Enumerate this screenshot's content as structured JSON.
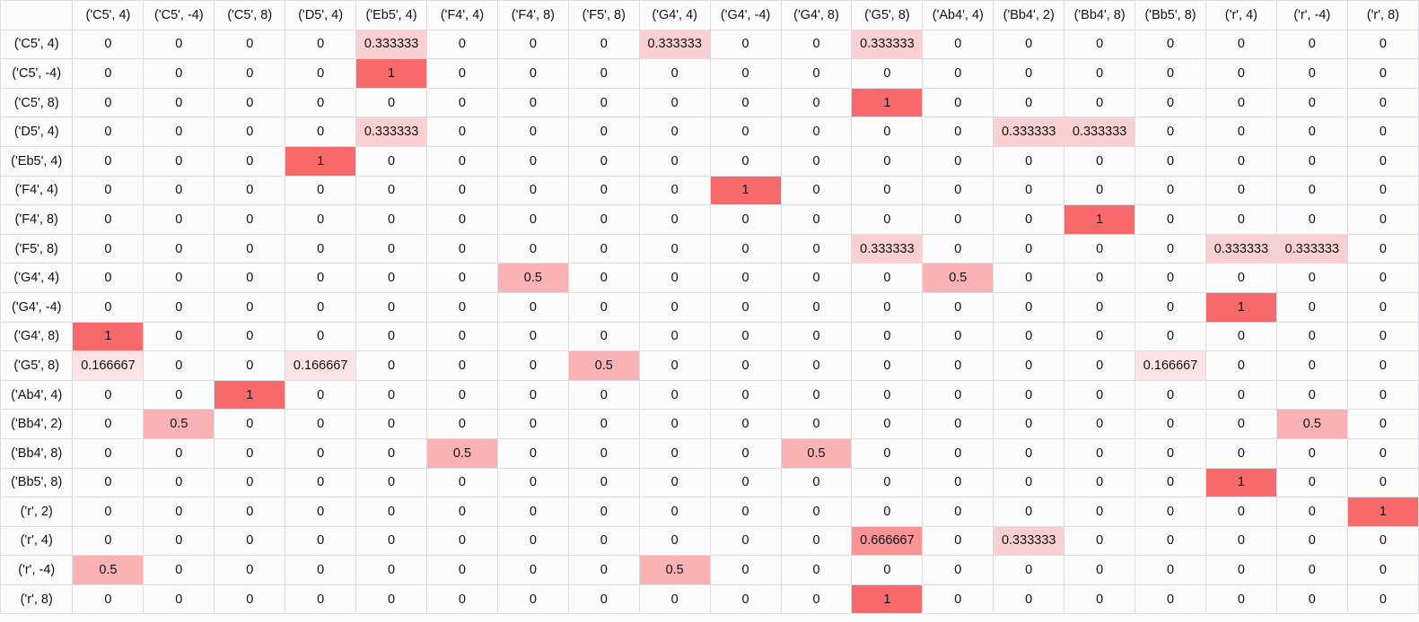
{
  "heat_colors": {
    "value_1": "#f7696b",
    "value_0_666667": "#f99496",
    "value_0_5": "#fab3b5",
    "value_0_333333": "#fbd0d2",
    "value_0_166667": "#fce4e6",
    "value_0": "#fcfcfd"
  },
  "table": {
    "corner": "",
    "columns": [
      "('C5', 4)",
      "('C5', -4)",
      "('C5', 8)",
      "('D5', 4)",
      "('Eb5', 4)",
      "('F4', 4)",
      "('F4', 8)",
      "('F5', 8)",
      "('G4', 4)",
      "('G4', -4)",
      "('G4', 8)",
      "('G5', 8)",
      "('Ab4', 4)",
      "('Bb4', 2)",
      "('Bb4', 8)",
      "('Bb5', 8)",
      "('r', 4)",
      "('r', -4)",
      "('r', 8)"
    ],
    "rows": [
      {
        "label": "('C5', 4)",
        "cells": [
          "0",
          "0",
          "0",
          "0",
          "0.333333",
          "0",
          "0",
          "0",
          "0.333333",
          "0",
          "0",
          "0.333333",
          "0",
          "0",
          "0",
          "0",
          "0",
          "0",
          "0"
        ]
      },
      {
        "label": "('C5', -4)",
        "cells": [
          "0",
          "0",
          "0",
          "0",
          "1",
          "0",
          "0",
          "0",
          "0",
          "0",
          "0",
          "0",
          "0",
          "0",
          "0",
          "0",
          "0",
          "0",
          "0"
        ]
      },
      {
        "label": "('C5', 8)",
        "cells": [
          "0",
          "0",
          "0",
          "0",
          "0",
          "0",
          "0",
          "0",
          "0",
          "0",
          "0",
          "1",
          "0",
          "0",
          "0",
          "0",
          "0",
          "0",
          "0"
        ]
      },
      {
        "label": "('D5', 4)",
        "cells": [
          "0",
          "0",
          "0",
          "0",
          "0.333333",
          "0",
          "0",
          "0",
          "0",
          "0",
          "0",
          "0",
          "0",
          "0.333333",
          "0.333333",
          "0",
          "0",
          "0",
          "0"
        ]
      },
      {
        "label": "('Eb5', 4)",
        "cells": [
          "0",
          "0",
          "0",
          "1",
          "0",
          "0",
          "0",
          "0",
          "0",
          "0",
          "0",
          "0",
          "0",
          "0",
          "0",
          "0",
          "0",
          "0",
          "0"
        ]
      },
      {
        "label": "('F4', 4)",
        "cells": [
          "0",
          "0",
          "0",
          "0",
          "0",
          "0",
          "0",
          "0",
          "0",
          "1",
          "0",
          "0",
          "0",
          "0",
          "0",
          "0",
          "0",
          "0",
          "0"
        ]
      },
      {
        "label": "('F4', 8)",
        "cells": [
          "0",
          "0",
          "0",
          "0",
          "0",
          "0",
          "0",
          "0",
          "0",
          "0",
          "0",
          "0",
          "0",
          "0",
          "1",
          "0",
          "0",
          "0",
          "0"
        ]
      },
      {
        "label": "('F5', 8)",
        "cells": [
          "0",
          "0",
          "0",
          "0",
          "0",
          "0",
          "0",
          "0",
          "0",
          "0",
          "0",
          "0.333333",
          "0",
          "0",
          "0",
          "0",
          "0.333333",
          "0.333333",
          "0"
        ]
      },
      {
        "label": "('G4', 4)",
        "cells": [
          "0",
          "0",
          "0",
          "0",
          "0",
          "0",
          "0.5",
          "0",
          "0",
          "0",
          "0",
          "0",
          "0.5",
          "0",
          "0",
          "0",
          "0",
          "0",
          "0"
        ]
      },
      {
        "label": "('G4', -4)",
        "cells": [
          "0",
          "0",
          "0",
          "0",
          "0",
          "0",
          "0",
          "0",
          "0",
          "0",
          "0",
          "0",
          "0",
          "0",
          "0",
          "0",
          "1",
          "0",
          "0"
        ]
      },
      {
        "label": "('G4', 8)",
        "cells": [
          "1",
          "0",
          "0",
          "0",
          "0",
          "0",
          "0",
          "0",
          "0",
          "0",
          "0",
          "0",
          "0",
          "0",
          "0",
          "0",
          "0",
          "0",
          "0"
        ]
      },
      {
        "label": "('G5', 8)",
        "cells": [
          "0.166667",
          "0",
          "0",
          "0.166667",
          "0",
          "0",
          "0",
          "0.5",
          "0",
          "0",
          "0",
          "0",
          "0",
          "0",
          "0",
          "0.166667",
          "0",
          "0",
          "0"
        ]
      },
      {
        "label": "('Ab4', 4)",
        "cells": [
          "0",
          "0",
          "1",
          "0",
          "0",
          "0",
          "0",
          "0",
          "0",
          "0",
          "0",
          "0",
          "0",
          "0",
          "0",
          "0",
          "0",
          "0",
          "0"
        ]
      },
      {
        "label": "('Bb4', 2)",
        "cells": [
          "0",
          "0.5",
          "0",
          "0",
          "0",
          "0",
          "0",
          "0",
          "0",
          "0",
          "0",
          "0",
          "0",
          "0",
          "0",
          "0",
          "0",
          "0.5",
          "0"
        ]
      },
      {
        "label": "('Bb4', 8)",
        "cells": [
          "0",
          "0",
          "0",
          "0",
          "0",
          "0.5",
          "0",
          "0",
          "0",
          "0",
          "0.5",
          "0",
          "0",
          "0",
          "0",
          "0",
          "0",
          "0",
          "0"
        ]
      },
      {
        "label": "('Bb5', 8)",
        "cells": [
          "0",
          "0",
          "0",
          "0",
          "0",
          "0",
          "0",
          "0",
          "0",
          "0",
          "0",
          "0",
          "0",
          "0",
          "0",
          "0",
          "1",
          "0",
          "0"
        ]
      },
      {
        "label": "('r', 2)",
        "cells": [
          "0",
          "0",
          "0",
          "0",
          "0",
          "0",
          "0",
          "0",
          "0",
          "0",
          "0",
          "0",
          "0",
          "0",
          "0",
          "0",
          "0",
          "0",
          "1"
        ]
      },
      {
        "label": "('r', 4)",
        "cells": [
          "0",
          "0",
          "0",
          "0",
          "0",
          "0",
          "0",
          "0",
          "0",
          "0",
          "0",
          "0.666667",
          "0",
          "0.333333",
          "0",
          "0",
          "0",
          "0",
          "0"
        ]
      },
      {
        "label": "('r', -4)",
        "cells": [
          "0.5",
          "0",
          "0",
          "0",
          "0",
          "0",
          "0",
          "0",
          "0.5",
          "0",
          "0",
          "0",
          "0",
          "0",
          "0",
          "0",
          "0",
          "0",
          "0"
        ]
      },
      {
        "label": "('r', 8)",
        "cells": [
          "0",
          "0",
          "0",
          "0",
          "0",
          "0",
          "0",
          "0",
          "0",
          "0",
          "0",
          "1",
          "0",
          "0",
          "0",
          "0",
          "0",
          "0",
          "0"
        ]
      }
    ]
  }
}
